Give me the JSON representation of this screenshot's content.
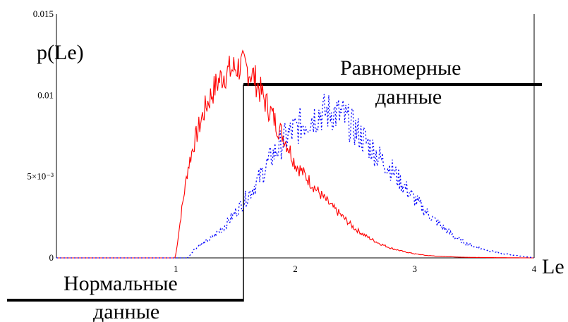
{
  "chart_data": {
    "type": "line",
    "ylabel": "p(Le)",
    "xlabel": "Le",
    "xlim": [
      0,
      4
    ],
    "ylim": [
      0,
      0.015
    ],
    "x_ticks": [
      {
        "value": 1,
        "label": "1"
      },
      {
        "value": 2,
        "label": "2"
      },
      {
        "value": 3,
        "label": "3"
      },
      {
        "value": 4,
        "label": "4"
      }
    ],
    "y_ticks": [
      {
        "value": 0,
        "label": "0"
      },
      {
        "value": 0.005,
        "label": "5×10⁻³"
      },
      {
        "value": 0.01,
        "label": "0.01"
      },
      {
        "value": 0.015,
        "label": "0.015"
      }
    ],
    "grid": false,
    "series": [
      {
        "name": "Нормальные данные",
        "color": "#ff0000",
        "style": "solid",
        "x": [
          0.0,
          0.5,
          0.99,
          1.0,
          1.05,
          1.1,
          1.15,
          1.2,
          1.25,
          1.3,
          1.35,
          1.4,
          1.45,
          1.5,
          1.55,
          1.6,
          1.65,
          1.7,
          1.75,
          1.8,
          1.85,
          1.9,
          1.95,
          2.0,
          2.1,
          2.2,
          2.3,
          2.4,
          2.5,
          2.6,
          2.7,
          2.8,
          2.9,
          3.0,
          3.1,
          3.2,
          3.4,
          3.6,
          4.0
        ],
        "y": [
          0.0,
          0.0,
          0.0,
          0.0002,
          0.003,
          0.0055,
          0.007,
          0.0082,
          0.0093,
          0.0101,
          0.0108,
          0.0113,
          0.0115,
          0.0117,
          0.0118,
          0.0116,
          0.0112,
          0.0104,
          0.0096,
          0.0089,
          0.0081,
          0.0075,
          0.0067,
          0.0058,
          0.0049,
          0.004,
          0.0032,
          0.0025,
          0.0018,
          0.0013,
          0.0009,
          0.0006,
          0.0004,
          0.00025,
          0.00015,
          0.0001,
          4e-05,
          2e-05,
          0.0
        ]
      },
      {
        "name": "Равномерные данные",
        "color": "#0000ff",
        "style": "dotted",
        "x": [
          0.0,
          0.5,
          1.0,
          1.1,
          1.15,
          1.2,
          1.3,
          1.4,
          1.5,
          1.6,
          1.7,
          1.8,
          1.9,
          1.95,
          2.0,
          2.1,
          2.2,
          2.3,
          2.4,
          2.5,
          2.6,
          2.7,
          2.8,
          2.9,
          3.0,
          3.1,
          3.2,
          3.3,
          3.4,
          3.5,
          3.6,
          3.7,
          3.8,
          3.9,
          4.0
        ],
        "y": [
          0.0,
          0.0,
          0.0,
          0.0,
          0.0005,
          0.0008,
          0.0012,
          0.0019,
          0.0028,
          0.0038,
          0.0049,
          0.0062,
          0.0072,
          0.0076,
          0.0079,
          0.0085,
          0.0089,
          0.009,
          0.0087,
          0.0079,
          0.0071,
          0.0062,
          0.0055,
          0.0045,
          0.0036,
          0.0028,
          0.0021,
          0.0015,
          0.001,
          0.0007,
          0.0005,
          0.0003,
          0.0002,
          0.0001,
          0.0
        ]
      }
    ],
    "annotations": {
      "uniform_line1": "Равномерные",
      "uniform_line2": "данные",
      "normal_line1": "Нормальные",
      "normal_line2": "данные"
    }
  }
}
